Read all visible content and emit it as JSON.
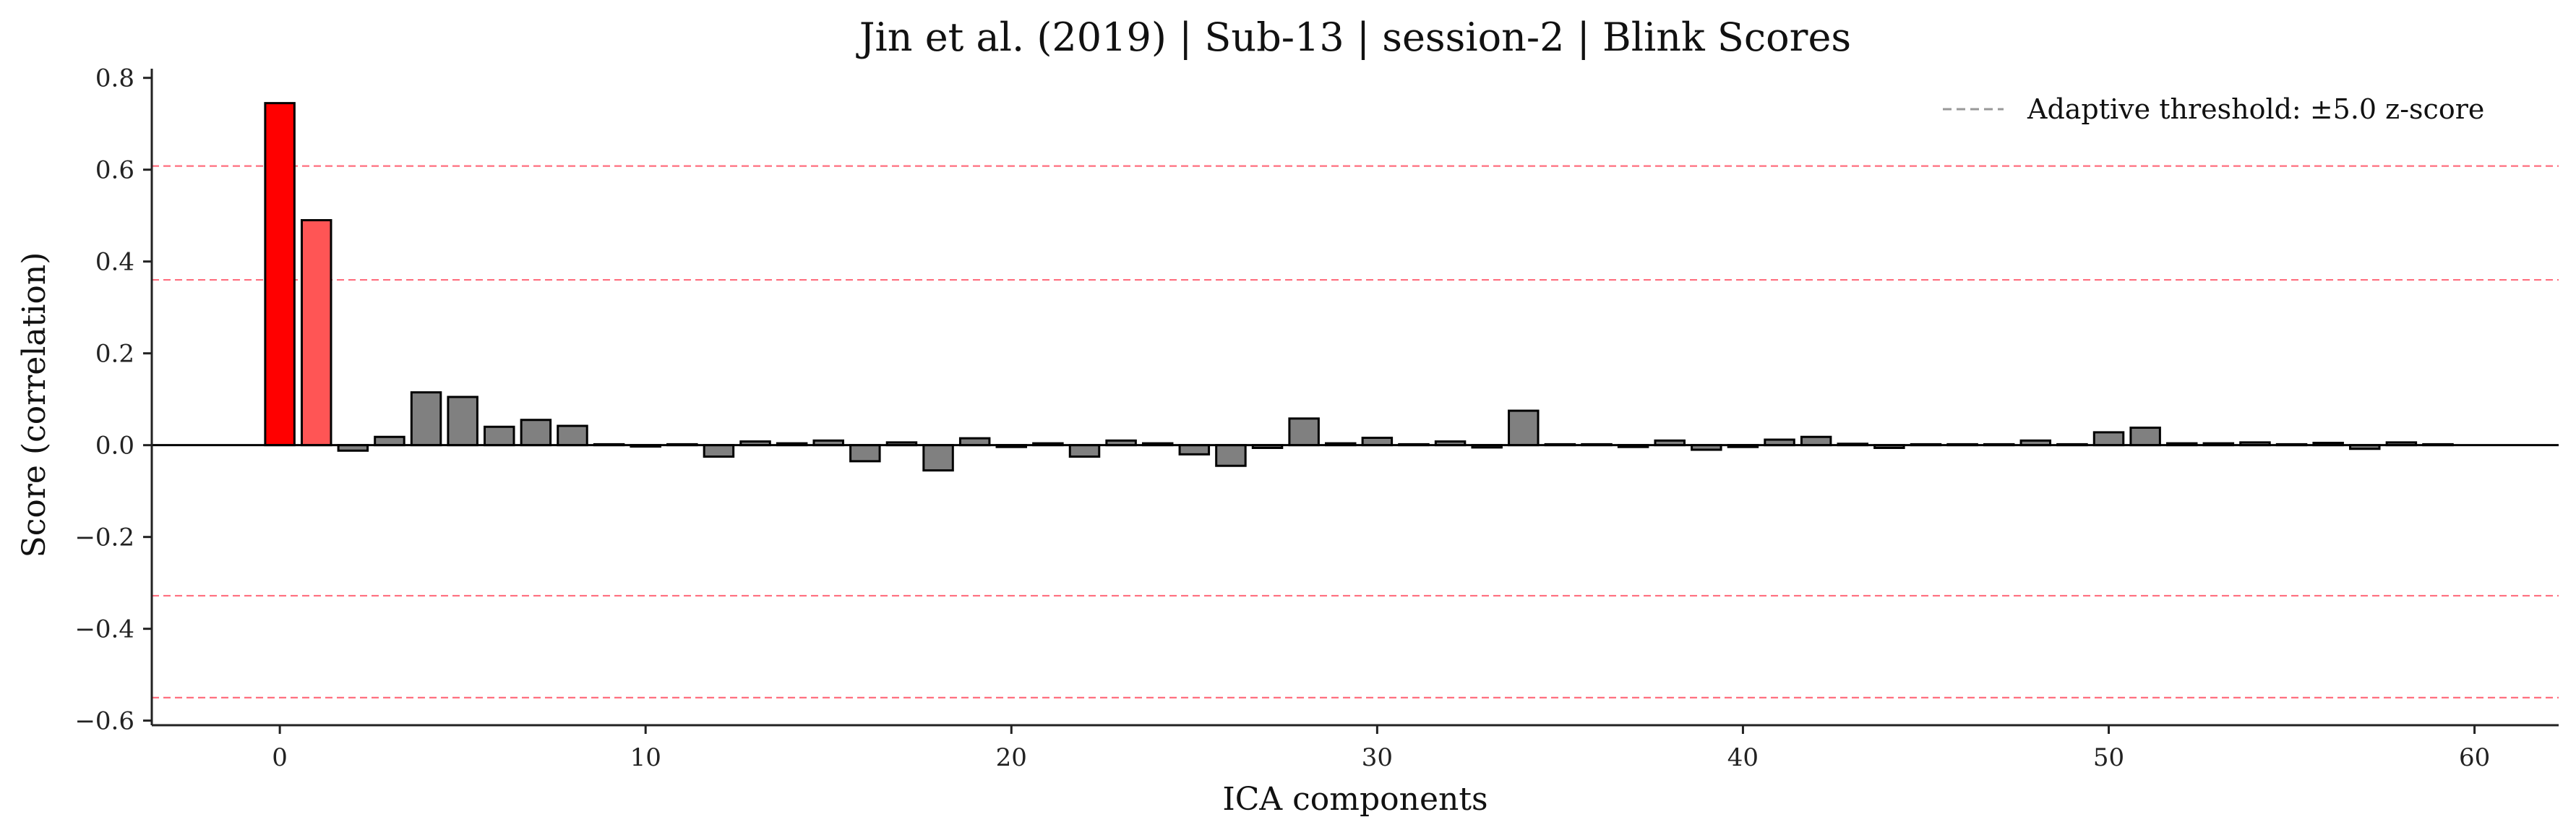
{
  "chart_data": {
    "type": "bar",
    "title": "Jin et al. (2019) | Sub-13 | session-2 | Blink Scores",
    "xlabel": "ICA components",
    "ylabel": "Score (correlation)",
    "xlim": [
      -3.5,
      62.3
    ],
    "ylim": [
      -0.61,
      0.82
    ],
    "xticks": [
      0,
      10,
      20,
      30,
      40,
      50,
      60
    ],
    "yticks": [
      -0.6,
      -0.4,
      -0.2,
      0.0,
      0.2,
      0.4,
      0.6,
      0.8
    ],
    "xtick_labels": [
      "0",
      "10",
      "20",
      "30",
      "40",
      "50",
      "60"
    ],
    "ytick_labels": [
      "−0.6",
      "−0.4",
      "−0.2",
      "0.0",
      "0.2",
      "0.4",
      "0.6",
      "0.8"
    ],
    "categories": [
      0,
      1,
      2,
      3,
      4,
      5,
      6,
      7,
      8,
      9,
      10,
      11,
      12,
      13,
      14,
      15,
      16,
      17,
      18,
      19,
      20,
      21,
      22,
      23,
      24,
      25,
      26,
      27,
      28,
      29,
      30,
      31,
      32,
      33,
      34,
      35,
      36,
      37,
      38,
      39,
      40,
      41,
      42,
      43,
      44,
      45,
      46,
      47,
      48,
      49,
      50,
      51,
      52,
      53,
      54,
      55,
      56,
      57,
      58,
      59
    ],
    "values": [
      0.745,
      0.49,
      -0.012,
      0.018,
      0.115,
      0.105,
      0.04,
      0.055,
      0.042,
      0.002,
      -0.003,
      0.002,
      -0.025,
      0.008,
      0.004,
      0.01,
      -0.035,
      0.006,
      -0.055,
      0.015,
      -0.004,
      0.004,
      -0.025,
      0.01,
      0.004,
      -0.02,
      -0.045,
      -0.006,
      0.058,
      0.004,
      0.016,
      0.002,
      0.008,
      -0.005,
      0.075,
      0.002,
      0.002,
      -0.004,
      0.01,
      -0.01,
      -0.004,
      0.012,
      0.018,
      0.003,
      -0.006,
      0.002,
      0.002,
      0.002,
      0.01,
      0.002,
      0.028,
      0.038,
      0.004,
      0.004,
      0.006,
      0.002,
      0.005,
      -0.008,
      0.006,
      0.002
    ],
    "bar_colors": {
      "0": "#ff0000",
      "1": "#ff5555",
      "default": "#808080"
    },
    "threshold_lines": [
      0.608,
      0.36,
      -0.328,
      -0.55
    ],
    "threshold_color": "#ff6f7f",
    "legend": {
      "label": "Adaptive threshold: ±5.0 z-score",
      "position": "top-right",
      "line_color": "#999999"
    },
    "grid": false
  }
}
